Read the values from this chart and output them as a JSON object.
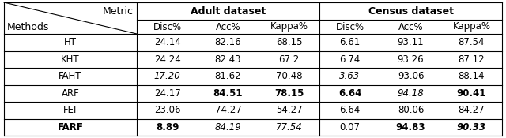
{
  "header_row1_left": "Metric",
  "header_row1_middle": "Adult dataset",
  "header_row1_right": "Census dataset",
  "header_row2": [
    "Disc%",
    "Acc%",
    "Kappa%",
    "Disc%",
    "Acc%",
    "Kappa%"
  ],
  "methods_label": "Methods",
  "rows": [
    [
      "HT",
      "24.14",
      "82.16",
      "68.15",
      "6.61",
      "93.11",
      "87.54"
    ],
    [
      "KHT",
      "24.24",
      "82.43",
      "67.2",
      "6.74",
      "93.26",
      "87.12"
    ],
    [
      "FAHT",
      "17.20",
      "81.62",
      "70.48",
      "3.63",
      "93.06",
      "88.14"
    ],
    [
      "ARF",
      "24.17",
      "84.51",
      "78.15",
      "6.64",
      "94.18",
      "90.41"
    ],
    [
      "FEI",
      "23.06",
      "74.27",
      "54.27",
      "6.64",
      "80.06",
      "84.27"
    ],
    [
      "FARF",
      "8.89",
      "84.19",
      "77.54",
      "0.07",
      "94.83",
      "90.33"
    ]
  ],
  "bold_cells": {
    "3,2": true,
    "3,3": true,
    "3,4": true,
    "3,6": true,
    "5,0": true,
    "5,1": true,
    "5,5": true,
    "5,6": true
  },
  "italic_cells": {
    "2,1": true,
    "2,4": true,
    "3,5": true,
    "5,2": true,
    "5,3": true,
    "5,6": true
  },
  "background_color": "#ffffff",
  "font_size": 8.5,
  "header_font_size": 9.0
}
